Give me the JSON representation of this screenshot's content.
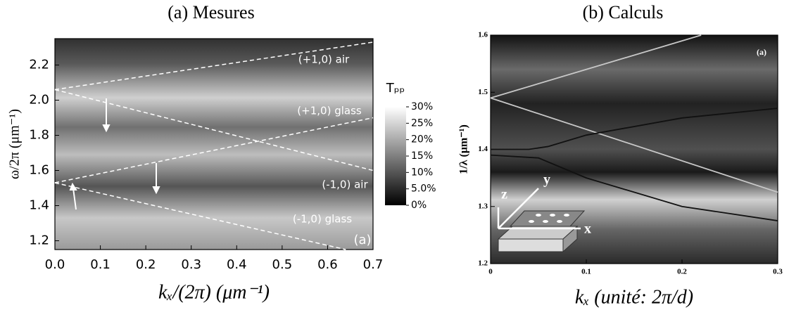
{
  "chart_data": [
    {
      "type": "line",
      "title": "(a) Mesures",
      "x_label": "kₓ/(2π) (μm⁻¹)",
      "y_label": "ω/2π (μm⁻¹)",
      "annotation": "(a)",
      "xlim": [
        0,
        0.7
      ],
      "xticks": [
        {
          "value": 0,
          "label": "0.0"
        },
        0.1,
        0.2,
        0.3,
        0.4,
        0.5,
        0.6,
        0.7
      ],
      "ylim": [
        1.15,
        2.35
      ],
      "yticks": [
        1.2,
        1.4,
        1.6,
        1.8,
        {
          "value": 2,
          "label": "2.0"
        },
        2.2
      ],
      "series": [
        {
          "name": "(+1,0) air",
          "color": "#ffffff",
          "x": [
            0,
            0.7
          ],
          "values": [
            2.06,
            2.33
          ]
        },
        {
          "name": "(+1,0) glass",
          "color": "#ffffff",
          "x": [
            0,
            0.7
          ],
          "values": [
            2.06,
            1.6
          ]
        },
        {
          "name": "(-1,0) air",
          "color": "#ffffff",
          "x": [
            0,
            0.7
          ],
          "values": [
            1.53,
            1.9
          ]
        },
        {
          "name": "(-1,0) glass",
          "color": "#ffffff",
          "x": [
            0,
            0.64
          ],
          "values": [
            1.53,
            1.15
          ]
        }
      ],
      "colorbar": {
        "title": "Tₚₚ",
        "lim": [
          0,
          30
        ],
        "ticks": [
          {
            "value": 0,
            "label": "0%"
          },
          {
            "value": 5,
            "label": "5.0%"
          },
          {
            "value": 10,
            "label": "10%"
          },
          {
            "value": 15,
            "label": "15%"
          },
          {
            "value": 20,
            "label": "20%"
          },
          {
            "value": 25,
            "label": "25%"
          },
          {
            "value": 30,
            "label": "30%"
          }
        ]
      }
    },
    {
      "type": "line",
      "title": "(b) Calculs",
      "x_label": "kₓ (unité: 2π/d)",
      "y_label": "1/λ (μm⁻¹)",
      "annotation": "(a)",
      "xlim": [
        0,
        0.3
      ],
      "xticks": [
        0,
        0.1,
        0.2,
        0.3
      ],
      "ylim": [
        1.2,
        1.6
      ],
      "yticks": [
        1.2,
        1.3,
        1.4,
        1.5,
        1.6
      ],
      "inset_labels": [
        "z",
        "y",
        "x"
      ],
      "series": [
        {
          "color": "#c8c8c8",
          "x": [
            0,
            0.22
          ],
          "values": [
            1.49,
            1.6
          ]
        },
        {
          "color": "#c8c8c8",
          "x": [
            0,
            0.3
          ],
          "values": [
            1.49,
            1.325
          ]
        },
        {
          "color": "#111111",
          "x": [
            0,
            0.04,
            0.06,
            0.1,
            0.2,
            0.3
          ],
          "values": [
            1.4,
            1.4,
            1.405,
            1.425,
            1.455,
            1.472
          ]
        },
        {
          "color": "#111111",
          "x": [
            0,
            0.05,
            0.1,
            0.2,
            0.3
          ],
          "values": [
            1.39,
            1.385,
            1.35,
            1.3,
            1.275
          ]
        }
      ]
    }
  ]
}
